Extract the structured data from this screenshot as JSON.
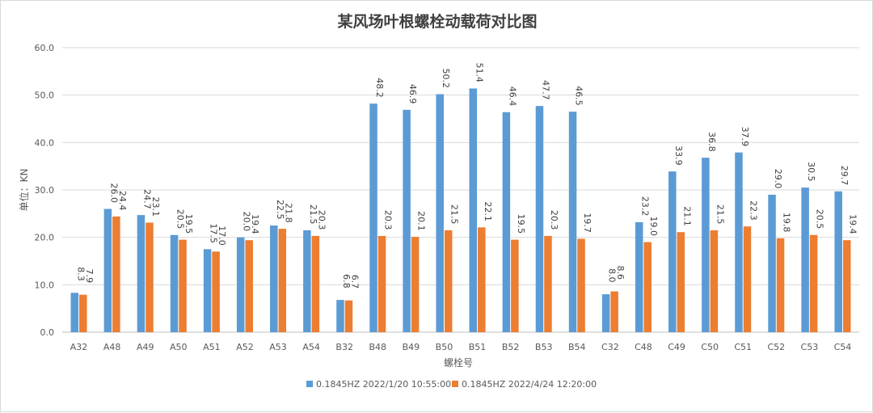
{
  "chart_data": {
    "type": "bar",
    "title": "某风场叶根螺栓动载荷对比图",
    "xlabel": "螺栓号",
    "ylabel": "单位：KN",
    "ylim": [
      0,
      60
    ],
    "yticks": [
      "0.0",
      "10.0",
      "20.0",
      "30.0",
      "40.0",
      "50.0",
      "60.0"
    ],
    "categories": [
      "A32",
      "A48",
      "A49",
      "A50",
      "A51",
      "A52",
      "A53",
      "A54",
      "B32",
      "B48",
      "B49",
      "B50",
      "B51",
      "B52",
      "B53",
      "B54",
      "C32",
      "C48",
      "C49",
      "C50",
      "C51",
      "C52",
      "C53",
      "C54"
    ],
    "series": [
      {
        "name": "0.1845HZ 2022/1/20  10:55:00",
        "color": "#5B9BD5",
        "values": [
          8.3,
          26.0,
          24.7,
          20.5,
          17.5,
          20.0,
          22.5,
          21.5,
          6.8,
          48.2,
          46.9,
          50.2,
          51.4,
          46.4,
          47.7,
          46.5,
          8.0,
          23.2,
          33.9,
          36.8,
          37.9,
          29.0,
          30.5,
          29.7
        ],
        "labels": [
          "8.3",
          "26.0",
          "24.7",
          "20.5",
          "17.5",
          "20.0",
          "22.5",
          "21.5",
          "6.8",
          "48.2",
          "46.9",
          "50.2",
          "51.4",
          "46.4",
          "47.7",
          "46.5",
          "8.0",
          "23.2",
          "33.9",
          "36.8",
          "37.9",
          "29.0",
          "30.5",
          "29.7"
        ]
      },
      {
        "name": "0.1845HZ 2022/4/24  12:20:00",
        "color": "#ED7D31",
        "values": [
          7.9,
          24.4,
          23.1,
          19.5,
          17.0,
          19.4,
          21.8,
          20.3,
          6.7,
          20.3,
          20.1,
          21.5,
          22.1,
          19.5,
          20.3,
          19.7,
          8.6,
          19.0,
          21.1,
          21.5,
          22.3,
          19.8,
          20.5,
          19.4
        ],
        "labels": [
          "7.9",
          "24.4",
          "23.1",
          "19.5",
          "17.0",
          "19.4",
          "21.8",
          "20.3",
          "6.7",
          "20.3",
          "20.1",
          "21.5",
          "22.1",
          "19.5",
          "20.3",
          "19.7",
          "8.6",
          "19.0",
          "21.1",
          "21.5",
          "22.3",
          "19.8",
          "20.5",
          "19.4"
        ]
      }
    ],
    "grid": true,
    "legend": "bottom"
  }
}
